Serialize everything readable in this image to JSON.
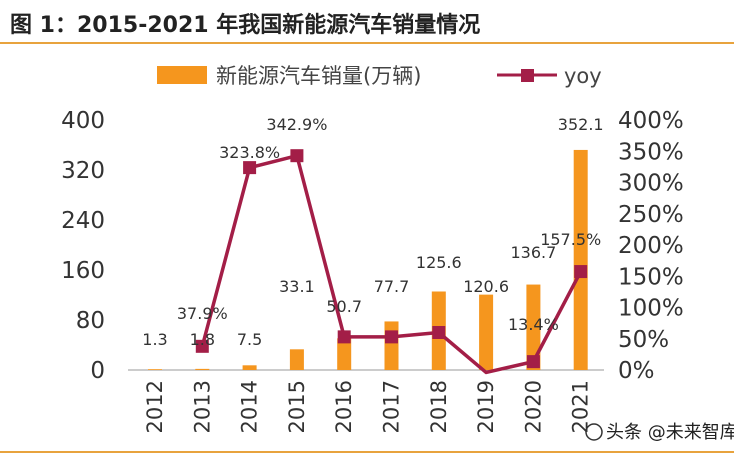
{
  "figure_label": "图 1：2015-2021 年我国新能源汽车销量情况",
  "watermark": "头条 @未来智库",
  "chart_data": {
    "type": "bar",
    "title": "图 1：2015-2021 年我国新能源汽车销量情况",
    "categories": [
      "2012",
      "2013",
      "2014",
      "2015",
      "2016",
      "2017",
      "2018",
      "2019",
      "2020",
      "2021"
    ],
    "series": [
      {
        "name": "新能源汽车销量(万辆)",
        "type": "bar",
        "axis": "left",
        "values": [
          1.3,
          1.8,
          7.5,
          33.1,
          50.7,
          77.7,
          125.6,
          120.6,
          136.7,
          352.1
        ],
        "labels": [
          "1.3",
          "1.8",
          "7.5",
          "33.1",
          "50.7",
          "77.7",
          "125.6",
          "120.6",
          "136.7",
          "352.1"
        ],
        "color": "#F5961E"
      },
      {
        "name": "yoy",
        "type": "line",
        "axis": "right",
        "values": [
          null,
          37.9,
          323.8,
          342.9,
          53,
          53,
          60,
          -3.9,
          13.4,
          157.5
        ],
        "labels": [
          "",
          "37.9%",
          "323.8%",
          "342.9%",
          "",
          "",
          "",
          "",
          "13.4%",
          "157.5%"
        ],
        "color": "#A31E47"
      }
    ],
    "y_left": {
      "ylim": [
        0,
        400
      ],
      "ticks": [
        "0",
        "80",
        "160",
        "240",
        "320",
        "400"
      ]
    },
    "y_right": {
      "ylim": [
        0,
        400
      ],
      "ticks": [
        "0%",
        "50%",
        "100%",
        "150%",
        "200%",
        "250%",
        "300%",
        "350%",
        "400%"
      ]
    },
    "legend": "top",
    "grid": false
  }
}
